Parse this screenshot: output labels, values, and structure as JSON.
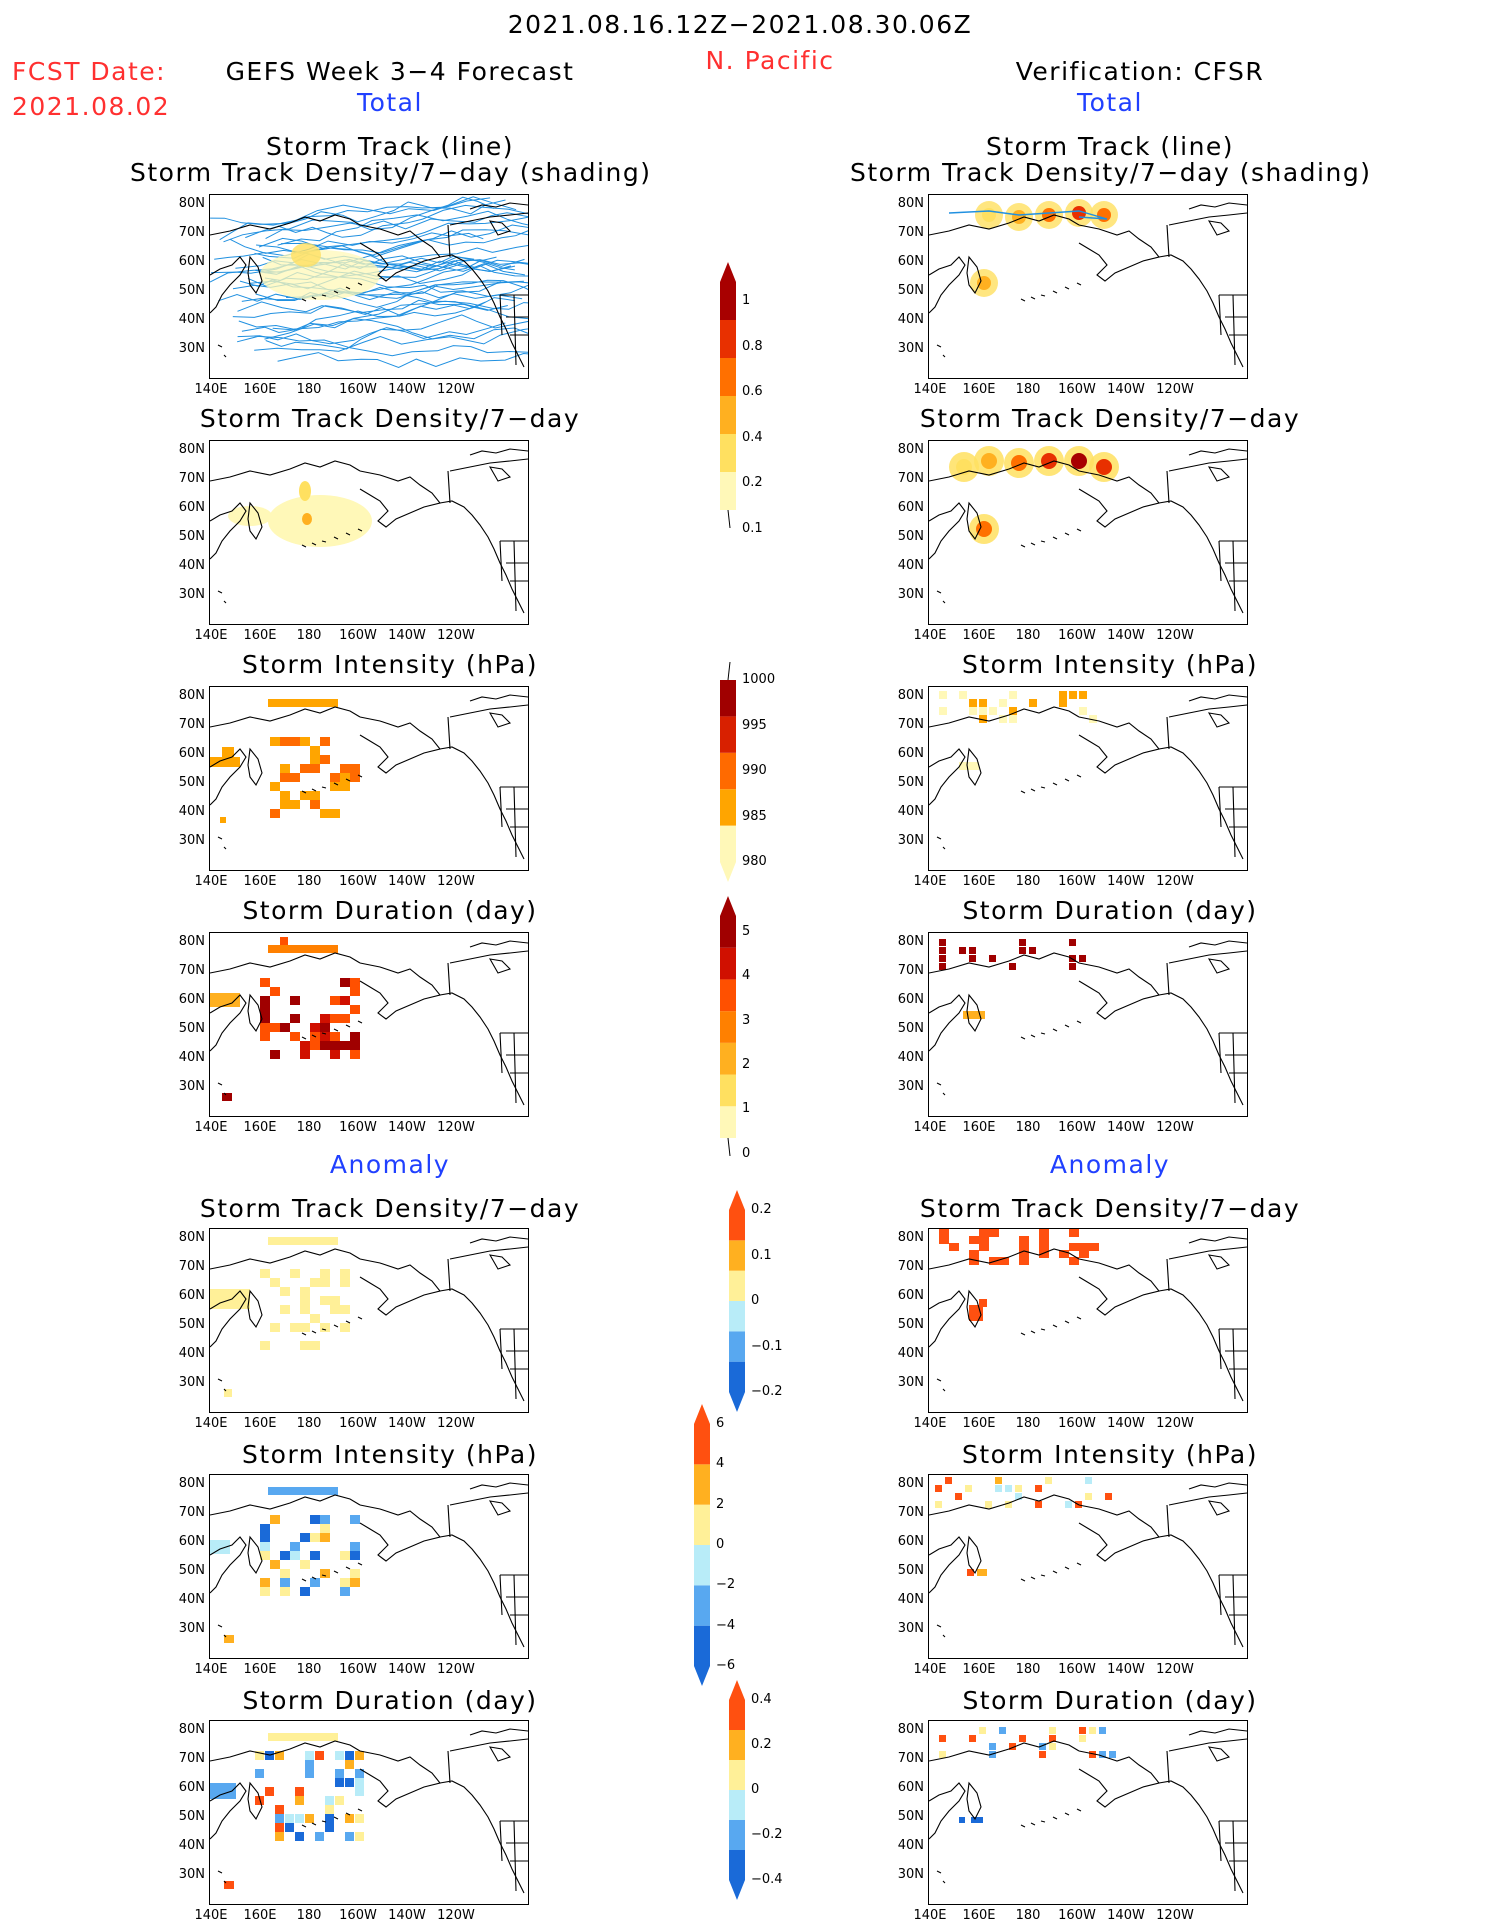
{
  "header": {
    "period": "2021.08.16.12Z−2021.08.30.06Z",
    "region": "N. Pacific",
    "fcst_label": "FCST Date:",
    "fcst_date": "2021.08.02",
    "left_title": "GEFS Week 3−4 Forecast",
    "right_title": "Verification: CFSR",
    "total_left": "Total",
    "total_right": "Total",
    "anomaly_left": "Anomaly",
    "anomaly_right": "Anomaly"
  },
  "panel_titles": {
    "track_line": "Storm Track (line)",
    "track_density_shading": "Storm Track Density/7−day (shading)",
    "track_density": "Storm Track Density/7−day",
    "intensity": "Storm Intensity (hPa)",
    "duration": "Storm Duration (day)"
  },
  "axes": {
    "lat_labels": [
      "80N",
      "70N",
      "60N",
      "50N",
      "40N",
      "30N"
    ],
    "lon_labels": [
      "140E",
      "160E",
      "180",
      "160W",
      "140W",
      "120W"
    ]
  },
  "colorbars": {
    "density": [
      "1",
      "0.8",
      "0.6",
      "0.4",
      "0.2",
      "0.1"
    ],
    "intensity": [
      "1000",
      "995",
      "990",
      "985",
      "980"
    ],
    "duration": [
      "5",
      "4",
      "3",
      "2",
      "1",
      "0"
    ],
    "density_anom": [
      "0.2",
      "0.1",
      "0",
      "−0.1",
      "−0.2"
    ],
    "intensity_anom": [
      "6",
      "4",
      "2",
      "0",
      "−2",
      "−4",
      "−6"
    ],
    "duration_anom": [
      "0.4",
      "0.2",
      "0",
      "−0.2",
      "−0.4"
    ]
  },
  "colors": {
    "density_scale": [
      "#fff8b8",
      "#ffe060",
      "#ffb020",
      "#ff7000",
      "#e83000",
      "#a80000"
    ],
    "intensity_scale": [
      "#fff8b8",
      "#ffa500",
      "#ff6a00",
      "#d82000",
      "#a00000"
    ],
    "duration_scale": [
      "#fff8b8",
      "#ffe060",
      "#ffb020",
      "#ff8000",
      "#ff5000",
      "#d01000",
      "#a00000"
    ],
    "anom_scale": [
      "#1a6ad8",
      "#58a8f0",
      "#b8ecf8",
      "#fff098",
      "#ffb020",
      "#ff5010"
    ],
    "track_line": "#2090e0",
    "header_red": "#ff3030",
    "header_blue": "#2040ff"
  }
}
